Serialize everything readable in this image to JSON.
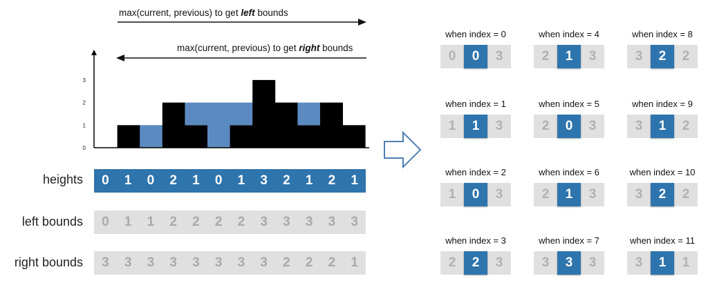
{
  "arrows": {
    "left": {
      "prefix": "max(current, previous) to get ",
      "emph": "left",
      "suffix": " bounds"
    },
    "right": {
      "prefix": "max(current, previous) to get ",
      "emph": "right",
      "suffix": " bounds"
    }
  },
  "chart_data": {
    "type": "bar",
    "heights": [
      0,
      1,
      0,
      2,
      1,
      0,
      1,
      3,
      2,
      1,
      2,
      1
    ],
    "water": [
      0,
      0,
      1,
      0,
      1,
      2,
      1,
      0,
      0,
      1,
      0,
      0
    ],
    "yticks": [
      "0",
      "1",
      "2",
      "3"
    ],
    "ylim": [
      0,
      3
    ],
    "colors": {
      "bar": "#000000",
      "water": "#5b8ac0"
    }
  },
  "rows": {
    "heights": {
      "label": "heights",
      "values": [
        "0",
        "1",
        "0",
        "2",
        "1",
        "0",
        "1",
        "3",
        "2",
        "1",
        "2",
        "1"
      ]
    },
    "left": {
      "label": "left bounds",
      "values": [
        "0",
        "1",
        "1",
        "2",
        "2",
        "2",
        "2",
        "3",
        "3",
        "3",
        "3",
        "3"
      ]
    },
    "right": {
      "label": "right bounds",
      "values": [
        "3",
        "3",
        "3",
        "3",
        "3",
        "3",
        "3",
        "3",
        "2",
        "2",
        "2",
        "1"
      ]
    }
  },
  "panels": [
    {
      "title": "when index = 0",
      "values": [
        "0",
        "0",
        "3"
      ]
    },
    {
      "title": "when index = 4",
      "values": [
        "2",
        "1",
        "3"
      ]
    },
    {
      "title": "when index = 8",
      "values": [
        "3",
        "2",
        "2"
      ]
    },
    {
      "title": "when index = 1",
      "values": [
        "1",
        "1",
        "3"
      ]
    },
    {
      "title": "when index = 5",
      "values": [
        "2",
        "0",
        "3"
      ]
    },
    {
      "title": "when index = 9",
      "values": [
        "3",
        "1",
        "2"
      ]
    },
    {
      "title": "when index = 2",
      "values": [
        "1",
        "0",
        "3"
      ]
    },
    {
      "title": "when index = 6",
      "values": [
        "2",
        "1",
        "3"
      ]
    },
    {
      "title": "when index = 10",
      "values": [
        "3",
        "2",
        "2"
      ]
    },
    {
      "title": "when index = 3",
      "values": [
        "2",
        "2",
        "3"
      ]
    },
    {
      "title": "when index = 7",
      "values": [
        "3",
        "3",
        "3"
      ]
    },
    {
      "title": "when index = 11",
      "values": [
        "3",
        "1",
        "1"
      ]
    }
  ],
  "colors": {
    "blue": "#2e74ad",
    "grey": "#e0e0e0",
    "grey_text": "#a9a9a9"
  }
}
